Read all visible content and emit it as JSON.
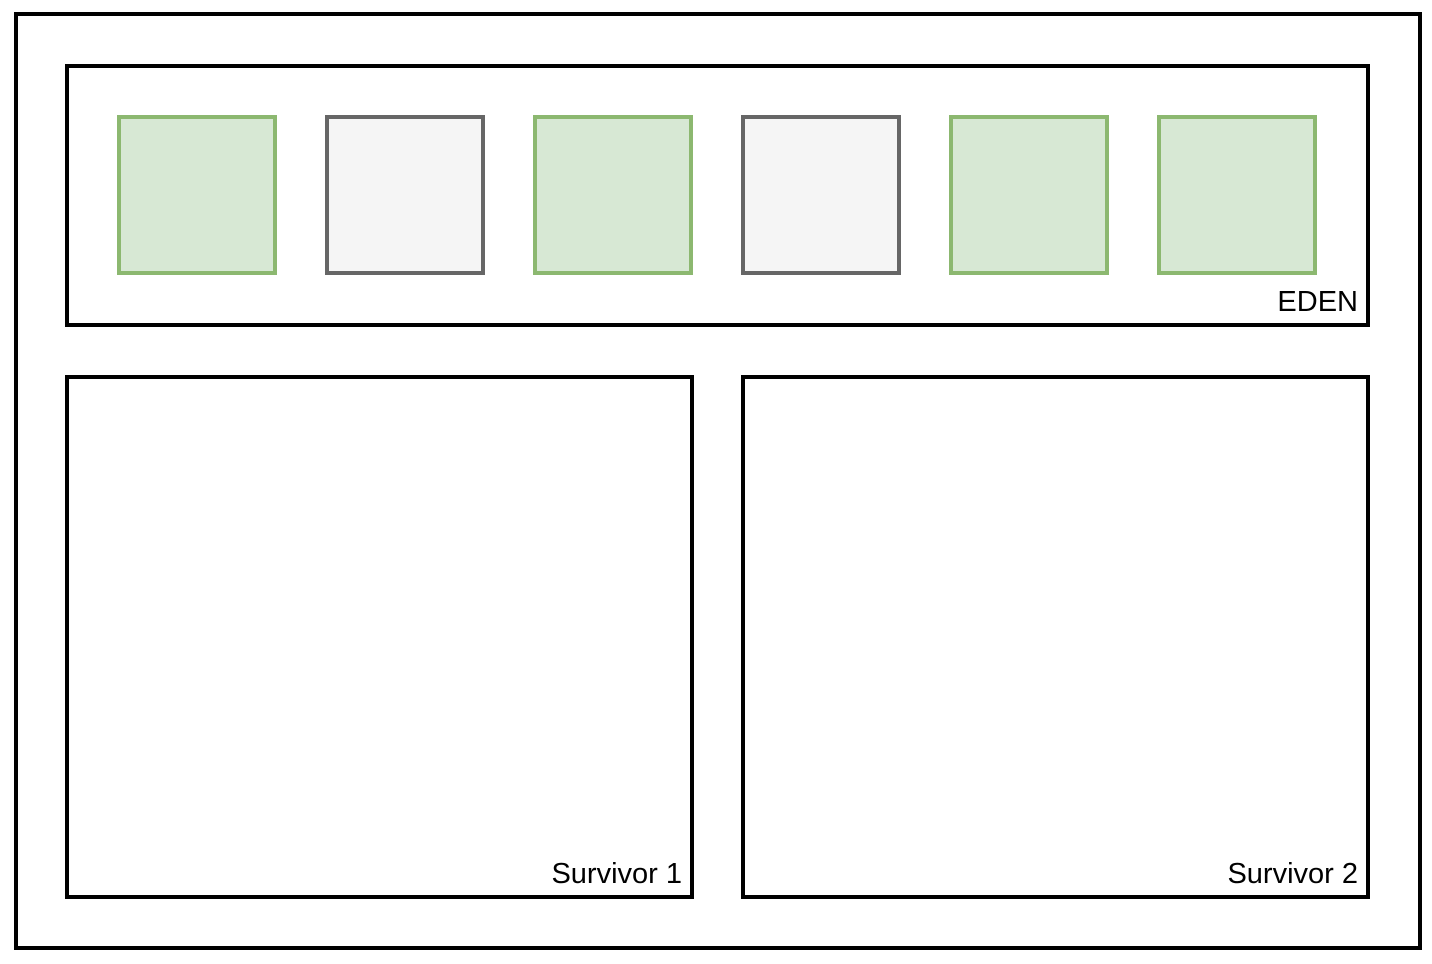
{
  "heap": {
    "eden": {
      "label": "EDEN",
      "objects": [
        {
          "state": "live"
        },
        {
          "state": "dead"
        },
        {
          "state": "live"
        },
        {
          "state": "dead"
        },
        {
          "state": "live"
        },
        {
          "state": "live"
        }
      ]
    },
    "survivor1": {
      "label": "Survivor 1"
    },
    "survivor2": {
      "label": "Survivor 2"
    }
  },
  "colors": {
    "live_fill": "#d7e8d4",
    "live_stroke": "#8cb870",
    "dead_fill": "#f5f5f5",
    "dead_stroke": "#666666",
    "region_stroke": "#000000"
  }
}
